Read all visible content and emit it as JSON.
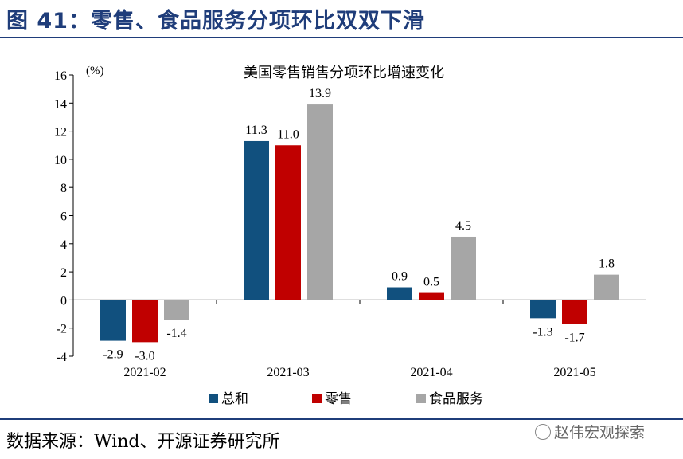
{
  "header": {
    "title": "图 41：零售、食品服务分项环比双双下滑"
  },
  "footer": {
    "source": "数据来源：Wind、开源证券研究所",
    "watermark": "赵伟宏观探索"
  },
  "chart_data": {
    "type": "bar",
    "title": "美国零售销售分项环比增速变化",
    "ylabel": "(%)",
    "categories": [
      "2021-02",
      "2021-03",
      "2021-04",
      "2021-05"
    ],
    "series": [
      {
        "name": "总和",
        "color": "#11507e",
        "values": [
          -2.9,
          11.3,
          0.9,
          -1.3
        ],
        "labels": [
          "-2.9",
          "11.3",
          "0.9",
          "-1.3"
        ]
      },
      {
        "name": "零售",
        "color": "#c00000",
        "values": [
          -3.0,
          11.0,
          0.5,
          -1.7
        ],
        "labels": [
          "-3.0",
          "11.0",
          "0.5",
          "-1.7"
        ]
      },
      {
        "name": "食品服务",
        "color": "#a6a6a6",
        "values": [
          -1.4,
          13.9,
          4.5,
          1.8
        ],
        "labels": [
          "-1.4",
          "13.9",
          "4.5",
          "1.8"
        ]
      }
    ],
    "ylim": [
      -4,
      16
    ],
    "yticks": [
      -4,
      -2,
      0,
      2,
      4,
      6,
      8,
      10,
      12,
      14,
      16
    ],
    "ytick_labels": [
      "-4",
      "-2",
      "0",
      "2",
      "4",
      "6",
      "8",
      "10",
      "12",
      "14",
      "16"
    ],
    "grid": false,
    "legend_position": "bottom"
  }
}
